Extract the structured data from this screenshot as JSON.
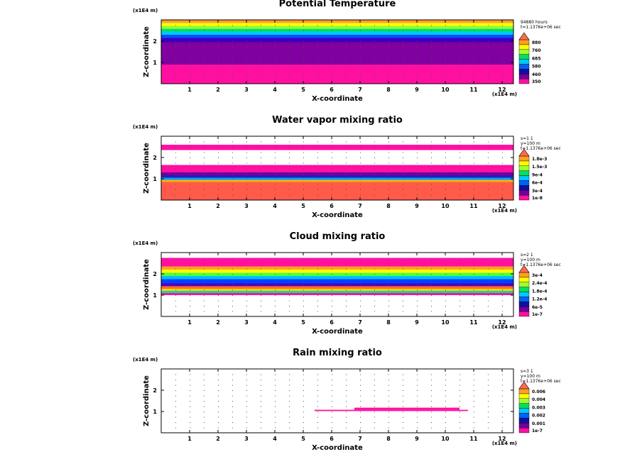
{
  "chart_data": [
    {
      "type": "heatmap",
      "title": "Potential Temperature",
      "xlabel": "X-coordinate",
      "ylabel": "Z-coordinate",
      "x_unit": "(x1E4 m)",
      "z_unit": "(x1E4 m)",
      "xticks": [
        "1",
        "2",
        "3",
        "4",
        "5",
        "6",
        "7",
        "8",
        "9",
        "10",
        "11",
        "12"
      ],
      "zticks": [
        "1",
        "2"
      ],
      "xlim": [
        0,
        12.4
      ],
      "zlim": [
        0,
        3
      ],
      "info": [
        "94880 hours",
        "t=1.1376e+06 sec"
      ],
      "colorbar": [
        "880",
        "760",
        "685",
        "580",
        "460",
        "350"
      ],
      "bands": [
        {
          "z0": 0.0,
          "z1": 0.9,
          "color": "#ff10a0"
        },
        {
          "z0": 0.9,
          "z1": 1.95,
          "color": "#8000a0"
        },
        {
          "z0": 1.95,
          "z1": 2.15,
          "color": "#3a00c0"
        },
        {
          "z0": 2.15,
          "z1": 2.3,
          "color": "#0050ff"
        },
        {
          "z0": 2.3,
          "z1": 2.45,
          "color": "#00c8ff"
        },
        {
          "z0": 2.45,
          "z1": 2.58,
          "color": "#00e060"
        },
        {
          "z0": 2.58,
          "z1": 2.72,
          "color": "#90ff30"
        },
        {
          "z0": 2.72,
          "z1": 2.85,
          "color": "#ffff00"
        },
        {
          "z0": 2.85,
          "z1": 3.0,
          "color": "#ffa030"
        }
      ]
    },
    {
      "type": "heatmap",
      "title": "Water vapor mixing ratio",
      "xlabel": "X-coordinate",
      "ylabel": "Z-coordinate",
      "x_unit": "(x1E4 m)",
      "z_unit": "(x1E4 m)",
      "xticks": [
        "1",
        "2",
        "3",
        "4",
        "5",
        "6",
        "7",
        "8",
        "9",
        "10",
        "11",
        "12"
      ],
      "zticks": [
        "1",
        "2"
      ],
      "xlim": [
        0,
        12.4
      ],
      "zlim": [
        0,
        3
      ],
      "info": [
        "s=1 1",
        "y=100 m",
        "t=1.1376e+06 sec"
      ],
      "colorbar": [
        "1.8e-3",
        "1.5e-3",
        "9e-4",
        "6e-4",
        "3e-4",
        "1e-8"
      ],
      "bands": [
        {
          "z0": 0.0,
          "z1": 0.85,
          "color": "#ff5a4a"
        },
        {
          "z0": 0.85,
          "z1": 0.95,
          "color": "#ffb000"
        },
        {
          "z0": 0.95,
          "z1": 1.05,
          "color": "#00a0ff"
        },
        {
          "z0": 1.05,
          "z1": 1.15,
          "color": "#2020c0"
        },
        {
          "z0": 1.15,
          "z1": 1.3,
          "color": "#7000a0"
        },
        {
          "z0": 1.3,
          "z1": 1.65,
          "color": "#ff10a0"
        },
        {
          "z0": 2.35,
          "z1": 2.6,
          "color": "#ff10a0"
        }
      ]
    },
    {
      "type": "heatmap",
      "title": "Cloud mixing ratio",
      "xlabel": "X-coordinate",
      "ylabel": "Z-coordinate",
      "x_unit": "(x1E4 m)",
      "z_unit": "(x1E4 m)",
      "xticks": [
        "1",
        "2",
        "3",
        "4",
        "5",
        "6",
        "7",
        "8",
        "9",
        "10",
        "11",
        "12"
      ],
      "zticks": [
        "1",
        "2"
      ],
      "xlim": [
        0,
        12.4
      ],
      "zlim": [
        0,
        3
      ],
      "info": [
        "s=2 1",
        "y=100 m",
        "t=1.1376e+06 sec"
      ],
      "colorbar": [
        "3e-4",
        "2.4e-4",
        "1.8e-4",
        "1.2e-4",
        "6e-5",
        "1e-7"
      ],
      "bands": [
        {
          "z0": 1.0,
          "z1": 1.1,
          "color": "#ff10a0"
        },
        {
          "z0": 1.1,
          "z1": 1.2,
          "color": "#00e0a0"
        },
        {
          "z0": 1.2,
          "z1": 1.3,
          "color": "#ffd000"
        },
        {
          "z0": 1.3,
          "z1": 1.42,
          "color": "#ff6a30"
        },
        {
          "z0": 1.42,
          "z1": 1.55,
          "color": "#5000b0"
        },
        {
          "z0": 1.55,
          "z1": 1.75,
          "color": "#0040ff"
        },
        {
          "z0": 1.75,
          "z1": 1.9,
          "color": "#00c0ff"
        },
        {
          "z0": 1.9,
          "z1": 2.05,
          "color": "#50ff40"
        },
        {
          "z0": 2.05,
          "z1": 2.2,
          "color": "#ffff00"
        },
        {
          "z0": 2.2,
          "z1": 2.35,
          "color": "#ffa020"
        },
        {
          "z0": 2.35,
          "z1": 2.75,
          "color": "#ff10a0"
        }
      ]
    },
    {
      "type": "heatmap",
      "title": "Rain mixing ratio",
      "xlabel": "X-coordinate",
      "ylabel": "Z-coordinate",
      "x_unit": "(x1E4 m)",
      "z_unit": "(x1E4 m)",
      "xticks": [
        "1",
        "2",
        "3",
        "4",
        "5",
        "6",
        "7",
        "8",
        "9",
        "10",
        "11",
        "12"
      ],
      "zticks": [
        "1",
        "2"
      ],
      "xlim": [
        0,
        12.4
      ],
      "zlim": [
        0,
        3
      ],
      "info": [
        "s=3 1",
        "y=100 m",
        "t=1.1376e+06 sec"
      ],
      "colorbar": [
        "0.006",
        "0.004",
        "0.003",
        "0.002",
        "0.001",
        "1e-7"
      ],
      "bands": [
        {
          "z0": 1.02,
          "z1": 1.08,
          "color": "#ff10a0",
          "x0": 5.4,
          "x1": 10.8
        },
        {
          "z0": 1.08,
          "z1": 1.18,
          "color": "#ff10a0",
          "x0": 6.8,
          "x1": 10.5
        }
      ]
    }
  ],
  "colorbar_colors": [
    "#ff10a0",
    "#7000a0",
    "#1010a0",
    "#0060ff",
    "#00c8ff",
    "#00e060",
    "#a0ff30",
    "#ffff00",
    "#ffa020"
  ]
}
